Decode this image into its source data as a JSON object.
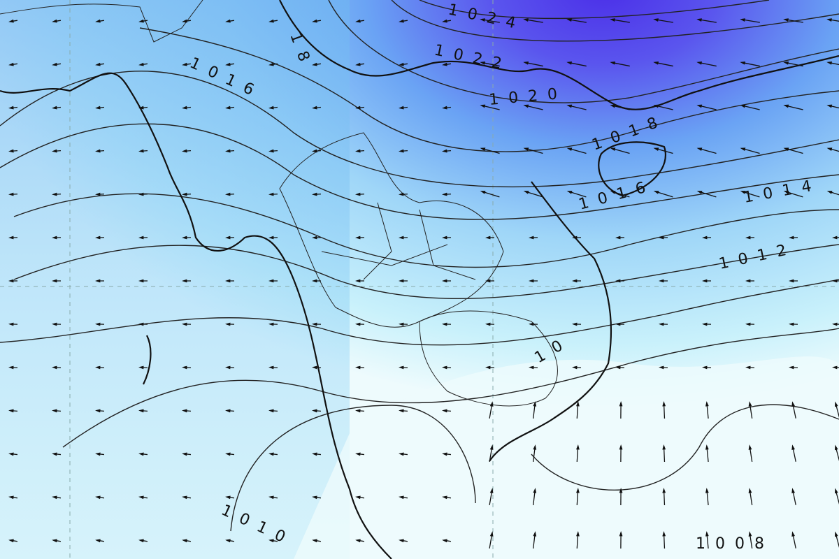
{
  "map": {
    "type": "surface pressure isobars with wind vectors",
    "colors": {
      "high_pressure_core": "#4b2fe8",
      "mid_blue": "#6aa3f4",
      "light_blue": "#9fd6f8",
      "pale_cyan": "#c9f1fb",
      "near_white": "#eefbfd",
      "isobar": "#222222",
      "coastline": "#111111"
    },
    "isobar_labels": [
      {
        "id": "1024",
        "text": "1024"
      },
      {
        "id": "1022",
        "text": "1022"
      },
      {
        "id": "1020",
        "text": "1020"
      },
      {
        "id": "1018a",
        "text": "1018"
      },
      {
        "id": "1018b",
        "text": "18"
      },
      {
        "id": "1016a",
        "text": "1016"
      },
      {
        "id": "1016b",
        "text": "1016"
      },
      {
        "id": "1014",
        "text": "1014"
      },
      {
        "id": "1012",
        "text": "1012"
      },
      {
        "id": "1010a",
        "text": "1010"
      },
      {
        "id": "1010b",
        "text": "10"
      },
      {
        "id": "1008",
        "text": "1008"
      }
    ]
  }
}
